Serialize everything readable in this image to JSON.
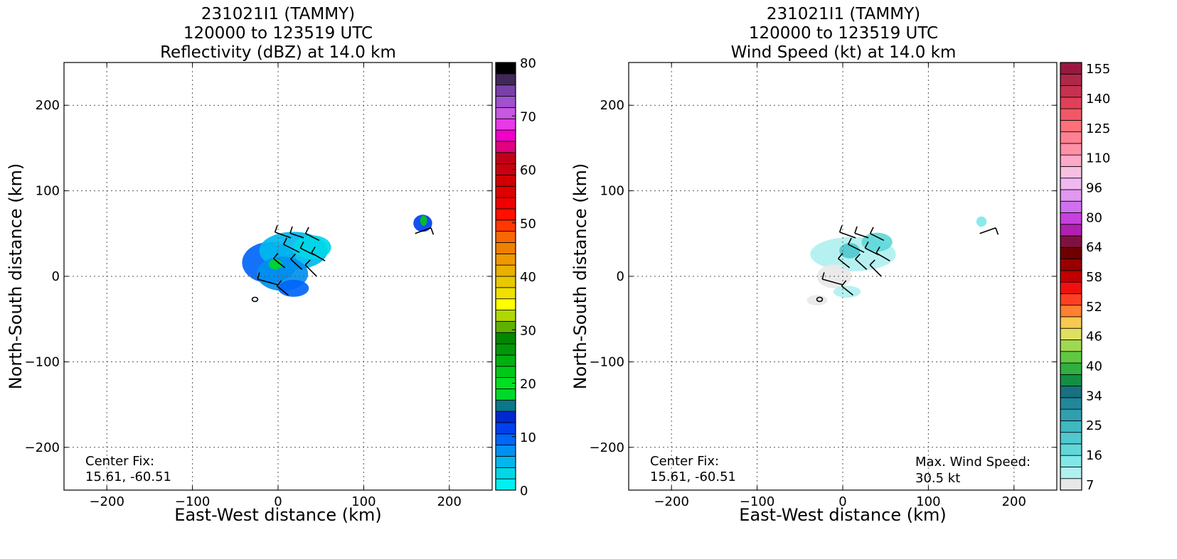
{
  "chart_data": [
    {
      "type": "heatmap",
      "title": [
        "231021I1 (TAMMY)",
        "120000 to 123519 UTC",
        "Reflectivity (dBZ) at 14.0 km"
      ],
      "xlabel": "East-West distance (km)",
      "ylabel": "North-South distance (km)",
      "xlim": [
        -250,
        250
      ],
      "ylim": [
        -250,
        250
      ],
      "xticks": [
        -200,
        -100,
        0,
        100,
        200
      ],
      "yticks": [
        -200,
        -100,
        0,
        100,
        200
      ],
      "grid": true,
      "annotation_left": [
        "Center Fix:",
        "15.61, -60.51"
      ],
      "annotation_right": [],
      "colorbar": {
        "vmin": 0,
        "vmax": 80,
        "ticks": [
          0,
          10,
          20,
          30,
          40,
          50,
          60,
          70,
          80
        ],
        "colors": [
          "#00f0f0",
          "#00d8e8",
          "#00b8ee",
          "#0090f0",
          "#0066f8",
          "#0040f0",
          "#0028d0",
          "#08788a",
          "#00d828",
          "#00e020",
          "#00c818",
          "#00b010",
          "#009808",
          "#008800",
          "#60b000",
          "#b0d800",
          "#ffff00",
          "#f0e000",
          "#e8c800",
          "#e8b000",
          "#f09800",
          "#f08000",
          "#f86800",
          "#ff3800",
          "#ff1000",
          "#f00000",
          "#e00000",
          "#d00000",
          "#c80010",
          "#c00018",
          "#e00080",
          "#f000c8",
          "#e838e8",
          "#c858e0",
          "#a050d0",
          "#7840a8",
          "#402858",
          "#000000"
        ]
      },
      "blobs": [
        {
          "x": -10,
          "y": 16,
          "rx": 32,
          "ry": 24,
          "value": 10
        },
        {
          "x": 18,
          "y": 30,
          "rx": 40,
          "ry": 22,
          "value": 6
        },
        {
          "x": 5,
          "y": 3,
          "rx": 30,
          "ry": 20,
          "value": 8
        },
        {
          "x": 40,
          "y": 34,
          "rx": 22,
          "ry": 14,
          "value": 4
        },
        {
          "x": 18,
          "y": -14,
          "rx": 18,
          "ry": 10,
          "value": 9
        },
        {
          "x": -3,
          "y": 14,
          "rx": 8,
          "ry": 6,
          "value": 18
        },
        {
          "x": 169,
          "y": 62,
          "rx": 11,
          "ry": 10,
          "value": 12
        },
        {
          "x": 170,
          "y": 65,
          "rx": 4,
          "ry": 6,
          "value": 22
        }
      ]
    },
    {
      "type": "heatmap",
      "title": [
        "231021I1 (TAMMY)",
        "120000 to 123519 UTC",
        "Wind Speed (kt) at 14.0 km"
      ],
      "xlabel": "East-West distance (km)",
      "ylabel": "North-South distance (km)",
      "xlim": [
        -250,
        250
      ],
      "ylim": [
        -250,
        250
      ],
      "xticks": [
        -200,
        -100,
        0,
        100,
        200
      ],
      "yticks": [
        -200,
        -100,
        0,
        100,
        200
      ],
      "grid": true,
      "annotation_left": [
        "Center Fix:",
        "15.61, -60.51"
      ],
      "annotation_right": [
        "Max. Wind Speed:",
        "30.5 kt"
      ],
      "colorbar": {
        "vmin": 7,
        "vmax": 160,
        "tick_labels": [
          "7",
          "16",
          "25",
          "34",
          "40",
          "46",
          "52",
          "58",
          "64",
          "80",
          "96",
          "110",
          "125",
          "140",
          "155"
        ],
        "colors": [
          "#e8e8e8",
          "#b0f0f0",
          "#80e8e8",
          "#60d8d8",
          "#50c8d0",
          "#40b8c0",
          "#30a0b0",
          "#208898",
          "#187080",
          "#109040",
          "#30b040",
          "#60c840",
          "#a0d850",
          "#e0e060",
          "#f8c850",
          "#ff8030",
          "#ff4020",
          "#f01010",
          "#c00000",
          "#980000",
          "#700000",
          "#801040",
          "#b020b0",
          "#c840e0",
          "#d070f0",
          "#e098f0",
          "#f0b8f0",
          "#f8c0e0",
          "#ffa8c8",
          "#ff90a8",
          "#ff8090",
          "#ff7078",
          "#f05868",
          "#e04058",
          "#c83050",
          "#b02848",
          "#981840"
        ]
      },
      "blobs": [
        {
          "x": 12,
          "y": 26,
          "rx": 50,
          "ry": 20,
          "value": 14
        },
        {
          "x": 8,
          "y": 30,
          "rx": 12,
          "ry": 9,
          "value": 26
        },
        {
          "x": 40,
          "y": 40,
          "rx": 18,
          "ry": 11,
          "value": 20
        },
        {
          "x": -10,
          "y": 0,
          "rx": 20,
          "ry": 14,
          "value": 11
        },
        {
          "x": 5,
          "y": -18,
          "rx": 16,
          "ry": 7,
          "value": 12
        },
        {
          "x": -30,
          "y": -28,
          "rx": 12,
          "ry": 6,
          "value": 7
        },
        {
          "x": 162,
          "y": 64,
          "rx": 6,
          "ry": 6,
          "value": 18
        }
      ],
      "barbs": [
        {
          "x": 15,
          "y": 45,
          "u": -14,
          "v": 5
        },
        {
          "x": 30,
          "y": 45,
          "u": -12,
          "v": 4
        },
        {
          "x": 48,
          "y": 42,
          "u": -12,
          "v": 6
        },
        {
          "x": 25,
          "y": 28,
          "u": -14,
          "v": 7
        },
        {
          "x": 42,
          "y": 25,
          "u": -12,
          "v": 6
        },
        {
          "x": 55,
          "y": 18,
          "u": -12,
          "v": 7
        },
        {
          "x": 8,
          "y": 10,
          "u": -10,
          "v": 8
        },
        {
          "x": 28,
          "y": 8,
          "u": -10,
          "v": 9
        },
        {
          "x": 45,
          "y": 0,
          "u": -10,
          "v": 10
        },
        {
          "x": 0,
          "y": -10,
          "u": -18,
          "v": 5
        },
        {
          "x": 12,
          "y": -22,
          "u": -10,
          "v": 8
        },
        {
          "x": 160,
          "y": 50,
          "u": 14,
          "v": 5
        }
      ]
    }
  ]
}
